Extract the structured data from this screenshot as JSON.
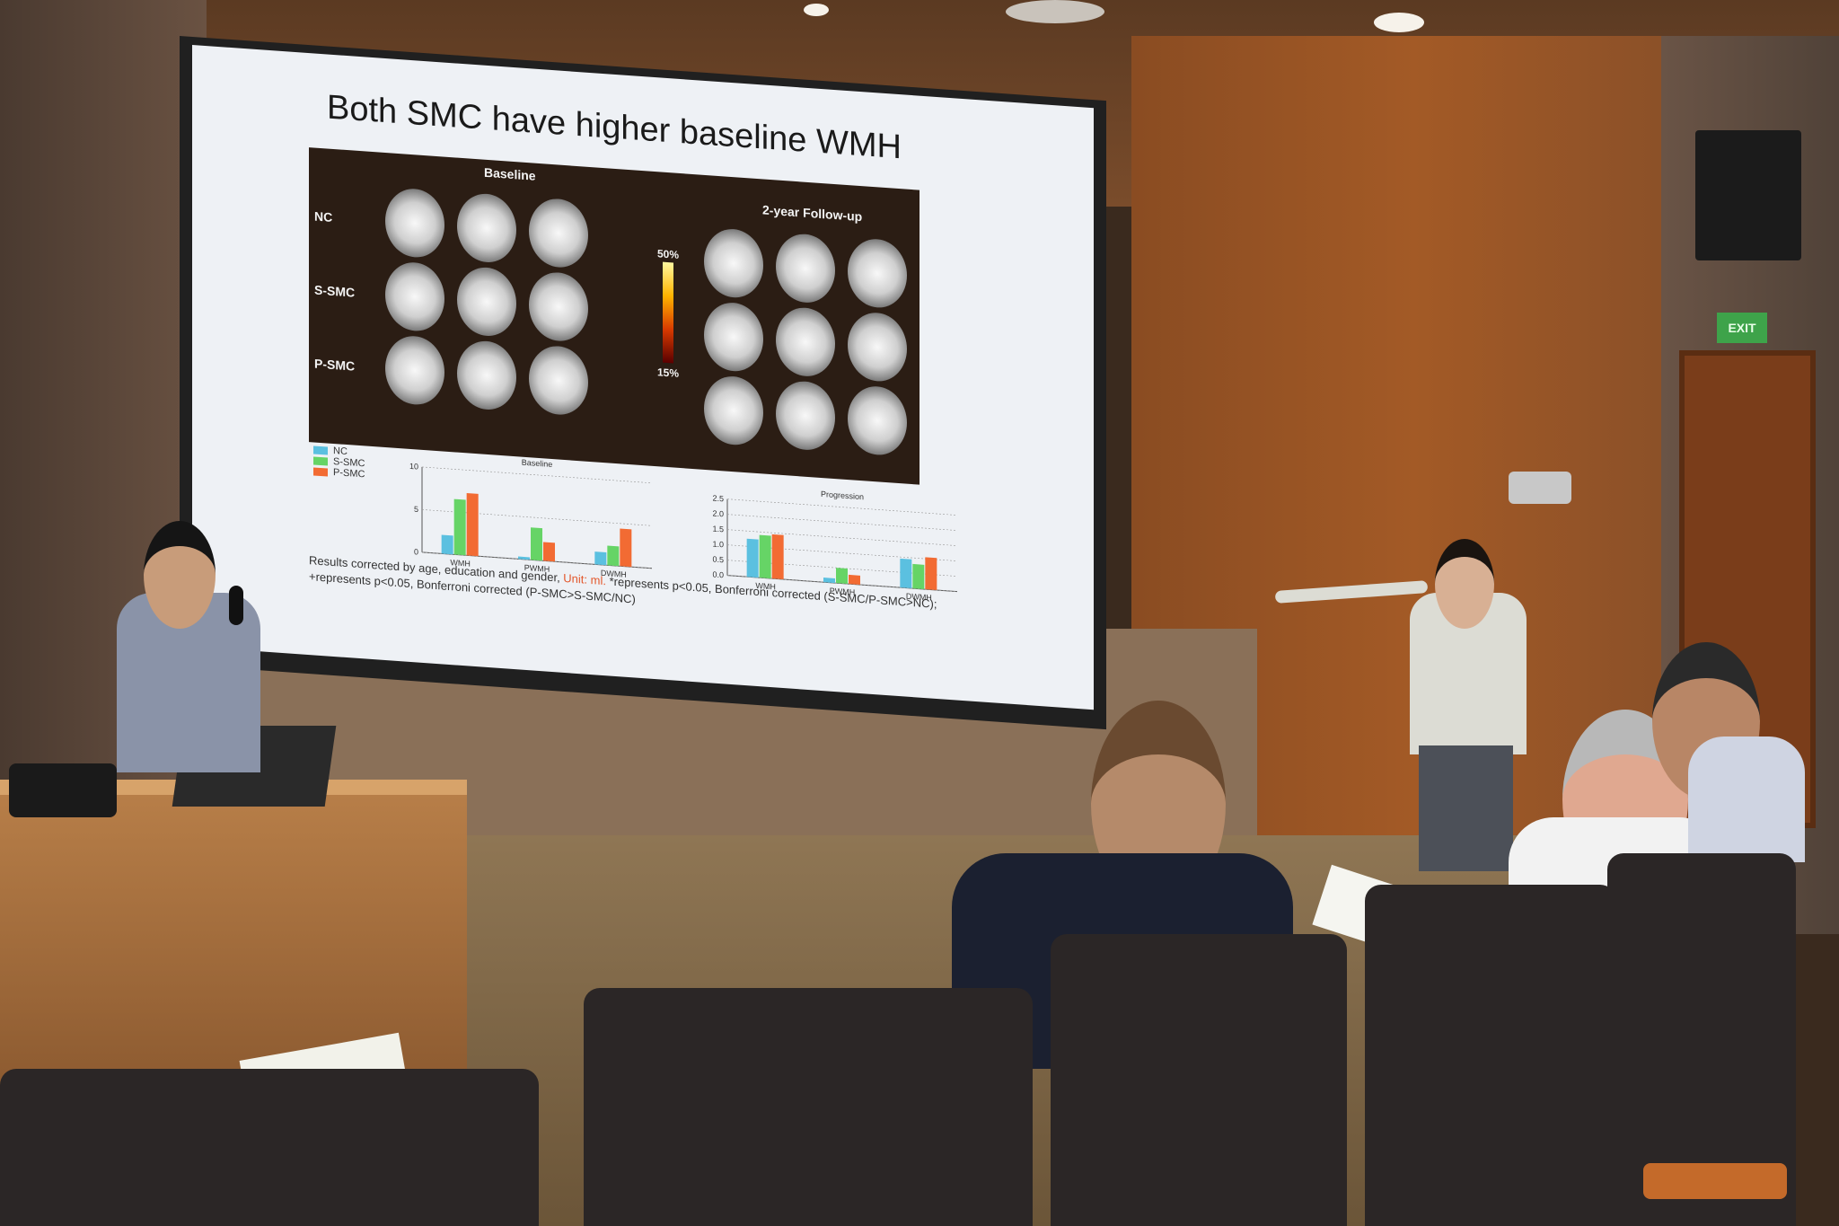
{
  "slide": {
    "title": "Both SMC have higher baseline WMH",
    "mri": {
      "baseline_label": "Baseline",
      "followup_label": "2-year Follow-up",
      "row_labels": [
        "NC",
        "S-SMC",
        "P-SMC"
      ],
      "colorbar_max": "50%",
      "colorbar_min": "15%"
    },
    "legend": [
      {
        "name": "NC",
        "color": "#5bc0e0"
      },
      {
        "name": "S-SMC",
        "color": "#66d466"
      },
      {
        "name": "P-SMC",
        "color": "#f26b33"
      }
    ],
    "footnote_a": "Results corrected by age, education and gender, ",
    "footnote_unit": "Unit: ml.",
    "footnote_b": " *represents p<0.05, Bonferroni corrected (S-SMC/P-SMC>NC); +represents p<0.05, Bonferroni corrected (P-SMC>S-SMC/NC)"
  },
  "chart_data": [
    {
      "type": "bar",
      "title": "Baseline",
      "categories": [
        "WMH",
        "PWMH",
        "DWMH"
      ],
      "ylim": [
        0,
        10
      ],
      "yticks": [
        "0",
        "5",
        "10"
      ],
      "series": [
        {
          "name": "NC",
          "values": [
            2.2,
            0.3,
            1.5
          ]
        },
        {
          "name": "S-SMC",
          "values": [
            6.5,
            3.8,
            2.3
          ]
        },
        {
          "name": "P-SMC",
          "values": [
            7.3,
            2.2,
            4.4
          ]
        }
      ]
    },
    {
      "type": "bar",
      "title": "Progression",
      "categories": [
        "WMH",
        "PWMH",
        "DWMH"
      ],
      "ylim": [
        0,
        2.5
      ],
      "yticks": [
        "0.0",
        "0.5",
        "1.0",
        "1.5",
        "2.0",
        "2.5"
      ],
      "series": [
        {
          "name": "NC",
          "values": [
            1.25,
            0.15,
            0.95
          ]
        },
        {
          "name": "S-SMC",
          "values": [
            1.4,
            0.5,
            0.8
          ]
        },
        {
          "name": "P-SMC",
          "values": [
            1.45,
            0.3,
            1.05
          ]
        }
      ]
    }
  ],
  "room": {
    "exit_sign": "EXIT"
  }
}
